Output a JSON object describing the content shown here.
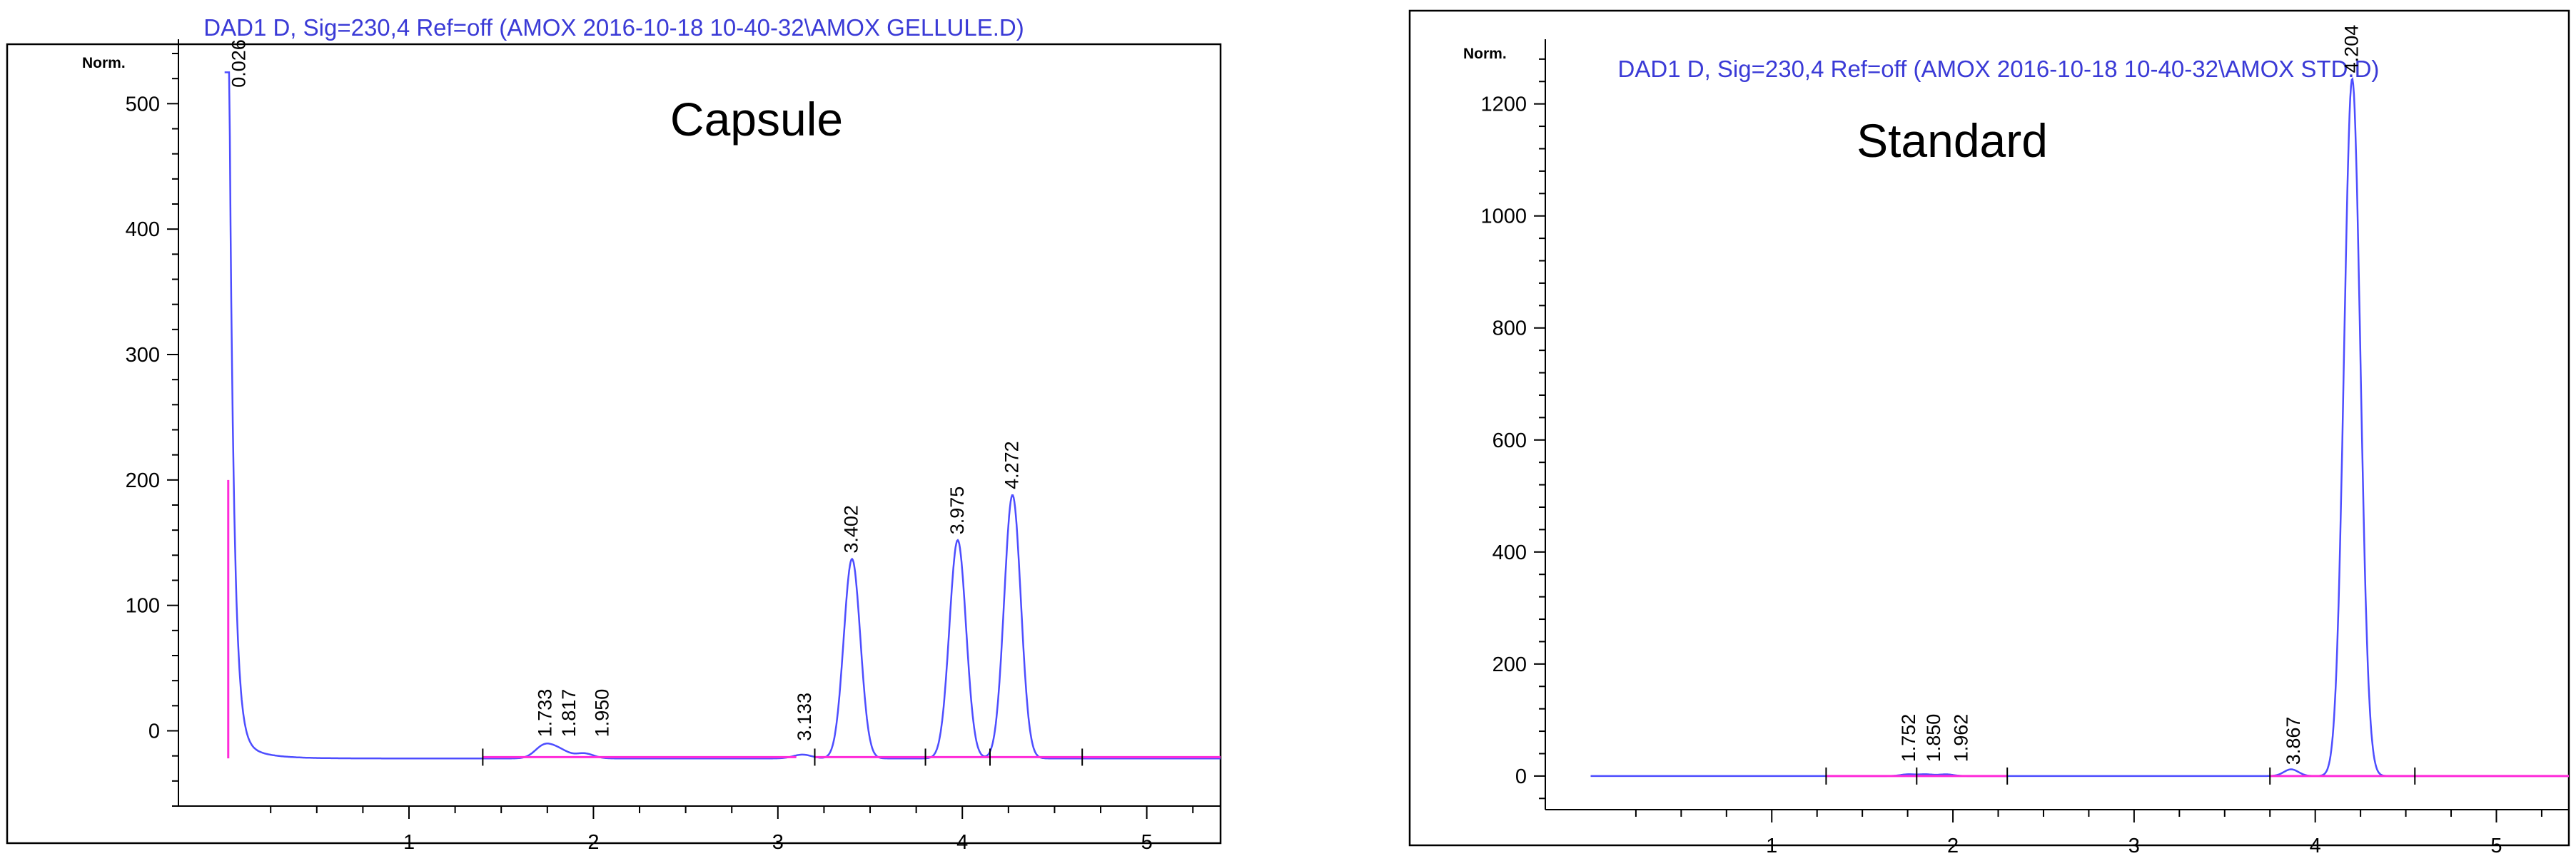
{
  "chart_data": [
    {
      "type": "line",
      "title": "DAD1 D, Sig=230,4 Ref=off (AMOX 2016-10-18 10-40-32\\AMOX GELLULE.D)",
      "ylabel": "Norm.",
      "annotation": "Capsule",
      "xlim": [
        -0.25,
        5.4
      ],
      "ylim": [
        -60,
        540
      ],
      "xticks": [
        1,
        2,
        3,
        4,
        5
      ],
      "yticks": [
        0,
        100,
        200,
        300,
        400,
        500
      ],
      "peaks": [
        {
          "label": "0.026",
          "x": 0.026,
          "y": 510
        },
        {
          "label": "1.733",
          "x": 1.733,
          "y": -12
        },
        {
          "label": "1.817",
          "x": 1.817,
          "y": -16
        },
        {
          "label": "1.950",
          "x": 1.95,
          "y": -18
        },
        {
          "label": "3.133",
          "x": 3.133,
          "y": -19
        },
        {
          "label": "3.402",
          "x": 3.402,
          "y": 137
        },
        {
          "label": "3.975",
          "x": 3.975,
          "y": 152
        },
        {
          "label": "4.272",
          "x": 4.272,
          "y": 188
        }
      ],
      "baseline_y": -22,
      "series": [
        {
          "color": "#4d4dff",
          "role": "signal"
        },
        {
          "color": "#ff2bd9",
          "role": "baseline"
        }
      ]
    },
    {
      "type": "line",
      "title": "DAD1 D, Sig=230,4 Ref=off (AMOX 2016-10-18 10-40-32\\AMOX STD.D)",
      "ylabel": "Norm.",
      "annotation": "Standard",
      "xlim": [
        -0.25,
        5.4
      ],
      "ylim": [
        -60,
        1290
      ],
      "xticks": [
        1,
        2,
        3,
        4,
        5
      ],
      "yticks": [
        0,
        200,
        400,
        600,
        800,
        1000,
        1200
      ],
      "peaks": [
        {
          "label": "1.752",
          "x": 1.752,
          "y": 3
        },
        {
          "label": "1.850",
          "x": 1.85,
          "y": 3
        },
        {
          "label": "1.962",
          "x": 1.962,
          "y": 3
        },
        {
          "label": "3.867",
          "x": 3.867,
          "y": 12
        },
        {
          "label": "4.204",
          "x": 4.204,
          "y": 1245
        }
      ],
      "baseline_y": 0,
      "series": [
        {
          "color": "#4d4dff",
          "role": "signal"
        },
        {
          "color": "#ff2bd9",
          "role": "baseline"
        }
      ]
    }
  ]
}
